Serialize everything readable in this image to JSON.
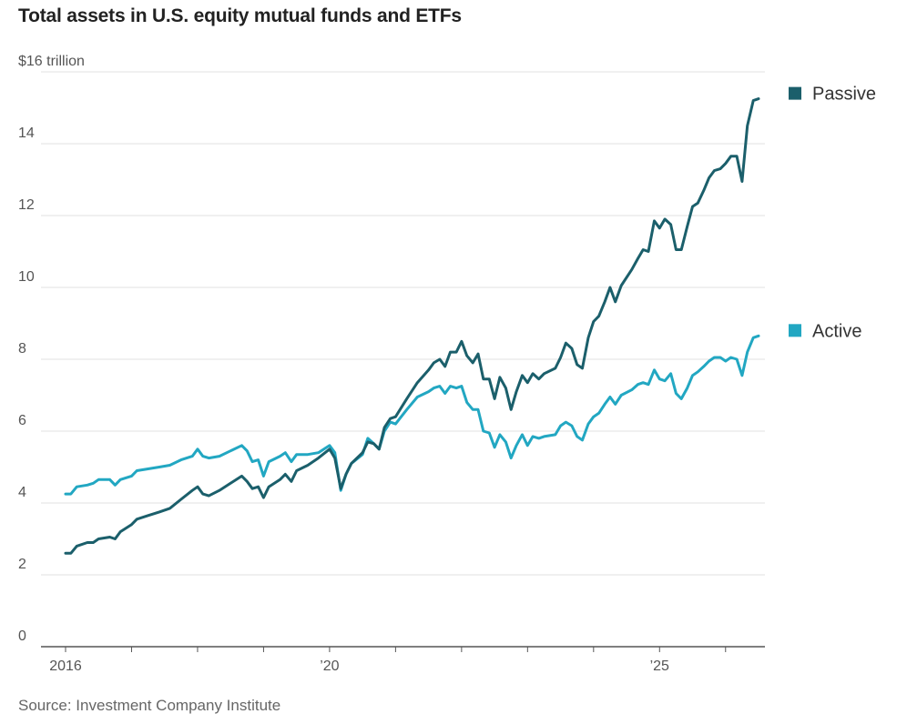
{
  "chart_data": {
    "type": "line",
    "title": "Total assets in U.S. equity mutual funds and ETFs",
    "source": "Source: Investment Company Institute",
    "y_unit_label": "$16 trillion",
    "ylim": [
      0,
      16
    ],
    "y_ticks": [
      0,
      2,
      4,
      6,
      8,
      10,
      12,
      14,
      16
    ],
    "y_tick_labels": [
      "0",
      "2",
      "4",
      "6",
      "8",
      "10",
      "12",
      "14",
      "$16 trillion"
    ],
    "xlim": [
      2016.0,
      2026.5
    ],
    "x_tick_labels": [
      {
        "x": 2016,
        "label": "2016"
      },
      {
        "x": 2020,
        "label": "’20"
      },
      {
        "x": 2025,
        "label": "’25"
      }
    ],
    "x_minor_ticks": [
      2016,
      2017,
      2018,
      2019,
      2020,
      2021,
      2022,
      2023,
      2024,
      2025,
      2026
    ],
    "grid": true,
    "legend_position": "right, beside line ends",
    "series": [
      {
        "name": "Passive",
        "color": "#1b5f6b",
        "points": [
          [
            2016.0,
            2.6
          ],
          [
            2016.08,
            2.6
          ],
          [
            2016.17,
            2.8
          ],
          [
            2016.33,
            2.9
          ],
          [
            2016.42,
            2.9
          ],
          [
            2016.5,
            3.0
          ],
          [
            2016.67,
            3.05
          ],
          [
            2016.75,
            3.0
          ],
          [
            2016.83,
            3.2
          ],
          [
            2017.0,
            3.4
          ],
          [
            2017.08,
            3.55
          ],
          [
            2017.25,
            3.65
          ],
          [
            2017.42,
            3.75
          ],
          [
            2017.58,
            3.85
          ],
          [
            2017.75,
            4.1
          ],
          [
            2017.92,
            4.35
          ],
          [
            2018.0,
            4.45
          ],
          [
            2018.08,
            4.25
          ],
          [
            2018.17,
            4.2
          ],
          [
            2018.33,
            4.35
          ],
          [
            2018.5,
            4.55
          ],
          [
            2018.67,
            4.75
          ],
          [
            2018.75,
            4.6
          ],
          [
            2018.83,
            4.4
          ],
          [
            2018.92,
            4.45
          ],
          [
            2019.0,
            4.15
          ],
          [
            2019.08,
            4.45
          ],
          [
            2019.25,
            4.65
          ],
          [
            2019.33,
            4.8
          ],
          [
            2019.42,
            4.6
          ],
          [
            2019.5,
            4.9
          ],
          [
            2019.67,
            5.05
          ],
          [
            2019.83,
            5.25
          ],
          [
            2020.0,
            5.5
          ],
          [
            2020.08,
            5.25
          ],
          [
            2020.17,
            4.4
          ],
          [
            2020.25,
            4.8
          ],
          [
            2020.33,
            5.1
          ],
          [
            2020.5,
            5.4
          ],
          [
            2020.58,
            5.7
          ],
          [
            2020.67,
            5.65
          ],
          [
            2020.75,
            5.5
          ],
          [
            2020.83,
            6.1
          ],
          [
            2020.92,
            6.35
          ],
          [
            2021.0,
            6.4
          ],
          [
            2021.17,
            6.9
          ],
          [
            2021.33,
            7.35
          ],
          [
            2021.5,
            7.7
          ],
          [
            2021.58,
            7.9
          ],
          [
            2021.67,
            8.0
          ],
          [
            2021.75,
            7.8
          ],
          [
            2021.83,
            8.2
          ],
          [
            2021.92,
            8.2
          ],
          [
            2022.0,
            8.5
          ],
          [
            2022.08,
            8.1
          ],
          [
            2022.17,
            7.9
          ],
          [
            2022.25,
            8.15
          ],
          [
            2022.33,
            7.45
          ],
          [
            2022.42,
            7.45
          ],
          [
            2022.5,
            6.9
          ],
          [
            2022.58,
            7.5
          ],
          [
            2022.67,
            7.2
          ],
          [
            2022.75,
            6.6
          ],
          [
            2022.83,
            7.1
          ],
          [
            2022.92,
            7.55
          ],
          [
            2023.0,
            7.35
          ],
          [
            2023.08,
            7.6
          ],
          [
            2023.17,
            7.45
          ],
          [
            2023.25,
            7.6
          ],
          [
            2023.42,
            7.75
          ],
          [
            2023.5,
            8.05
          ],
          [
            2023.58,
            8.45
          ],
          [
            2023.67,
            8.3
          ],
          [
            2023.75,
            7.85
          ],
          [
            2023.83,
            7.75
          ],
          [
            2023.92,
            8.6
          ],
          [
            2024.0,
            9.05
          ],
          [
            2024.08,
            9.2
          ],
          [
            2024.17,
            9.6
          ],
          [
            2024.25,
            10.0
          ],
          [
            2024.33,
            9.6
          ],
          [
            2024.42,
            10.05
          ],
          [
            2024.58,
            10.5
          ],
          [
            2024.67,
            10.8
          ],
          [
            2024.75,
            11.05
          ],
          [
            2024.83,
            11.0
          ],
          [
            2024.92,
            11.85
          ],
          [
            2025.0,
            11.65
          ],
          [
            2025.08,
            11.9
          ],
          [
            2025.17,
            11.75
          ],
          [
            2025.25,
            11.05
          ],
          [
            2025.33,
            11.05
          ],
          [
            2025.42,
            11.7
          ],
          [
            2025.5,
            12.25
          ],
          [
            2025.58,
            12.35
          ],
          [
            2025.67,
            12.7
          ],
          [
            2025.75,
            13.05
          ],
          [
            2025.83,
            13.25
          ],
          [
            2025.92,
            13.3
          ],
          [
            2026.0,
            13.45
          ],
          [
            2026.08,
            13.65
          ],
          [
            2026.17,
            13.65
          ],
          [
            2026.25,
            12.95
          ],
          [
            2026.33,
            14.5
          ],
          [
            2026.42,
            15.2
          ],
          [
            2026.5,
            15.25
          ]
        ]
      },
      {
        "name": "Active",
        "color": "#22a7c2",
        "points": [
          [
            2016.0,
            4.25
          ],
          [
            2016.08,
            4.25
          ],
          [
            2016.17,
            4.45
          ],
          [
            2016.33,
            4.5
          ],
          [
            2016.42,
            4.55
          ],
          [
            2016.5,
            4.65
          ],
          [
            2016.67,
            4.65
          ],
          [
            2016.75,
            4.5
          ],
          [
            2016.83,
            4.65
          ],
          [
            2017.0,
            4.75
          ],
          [
            2017.08,
            4.9
          ],
          [
            2017.25,
            4.95
          ],
          [
            2017.42,
            5.0
          ],
          [
            2017.58,
            5.05
          ],
          [
            2017.75,
            5.2
          ],
          [
            2017.92,
            5.3
          ],
          [
            2018.0,
            5.5
          ],
          [
            2018.08,
            5.3
          ],
          [
            2018.17,
            5.25
          ],
          [
            2018.33,
            5.3
          ],
          [
            2018.5,
            5.45
          ],
          [
            2018.67,
            5.6
          ],
          [
            2018.75,
            5.45
          ],
          [
            2018.83,
            5.15
          ],
          [
            2018.92,
            5.2
          ],
          [
            2019.0,
            4.75
          ],
          [
            2019.08,
            5.15
          ],
          [
            2019.25,
            5.3
          ],
          [
            2019.33,
            5.4
          ],
          [
            2019.42,
            5.15
          ],
          [
            2019.5,
            5.35
          ],
          [
            2019.67,
            5.35
          ],
          [
            2019.83,
            5.4
          ],
          [
            2020.0,
            5.6
          ],
          [
            2020.08,
            5.4
          ],
          [
            2020.17,
            4.35
          ],
          [
            2020.25,
            4.8
          ],
          [
            2020.33,
            5.1
          ],
          [
            2020.5,
            5.35
          ],
          [
            2020.58,
            5.8
          ],
          [
            2020.67,
            5.65
          ],
          [
            2020.75,
            5.5
          ],
          [
            2020.83,
            6.0
          ],
          [
            2020.92,
            6.25
          ],
          [
            2021.0,
            6.2
          ],
          [
            2021.17,
            6.6
          ],
          [
            2021.33,
            6.95
          ],
          [
            2021.5,
            7.1
          ],
          [
            2021.58,
            7.2
          ],
          [
            2021.67,
            7.25
          ],
          [
            2021.75,
            7.05
          ],
          [
            2021.83,
            7.25
          ],
          [
            2021.92,
            7.2
          ],
          [
            2022.0,
            7.25
          ],
          [
            2022.08,
            6.8
          ],
          [
            2022.17,
            6.6
          ],
          [
            2022.25,
            6.6
          ],
          [
            2022.33,
            6.0
          ],
          [
            2022.42,
            5.95
          ],
          [
            2022.5,
            5.55
          ],
          [
            2022.58,
            5.9
          ],
          [
            2022.67,
            5.7
          ],
          [
            2022.75,
            5.25
          ],
          [
            2022.83,
            5.6
          ],
          [
            2022.92,
            5.9
          ],
          [
            2023.0,
            5.6
          ],
          [
            2023.08,
            5.85
          ],
          [
            2023.17,
            5.8
          ],
          [
            2023.25,
            5.85
          ],
          [
            2023.42,
            5.9
          ],
          [
            2023.5,
            6.15
          ],
          [
            2023.58,
            6.25
          ],
          [
            2023.67,
            6.15
          ],
          [
            2023.75,
            5.85
          ],
          [
            2023.83,
            5.75
          ],
          [
            2023.92,
            6.2
          ],
          [
            2024.0,
            6.4
          ],
          [
            2024.08,
            6.5
          ],
          [
            2024.17,
            6.75
          ],
          [
            2024.25,
            6.95
          ],
          [
            2024.33,
            6.75
          ],
          [
            2024.42,
            7.0
          ],
          [
            2024.58,
            7.15
          ],
          [
            2024.67,
            7.3
          ],
          [
            2024.75,
            7.35
          ],
          [
            2024.83,
            7.3
          ],
          [
            2024.92,
            7.7
          ],
          [
            2025.0,
            7.45
          ],
          [
            2025.08,
            7.4
          ],
          [
            2025.17,
            7.6
          ],
          [
            2025.25,
            7.05
          ],
          [
            2025.33,
            6.9
          ],
          [
            2025.42,
            7.2
          ],
          [
            2025.5,
            7.55
          ],
          [
            2025.58,
            7.65
          ],
          [
            2025.67,
            7.8
          ],
          [
            2025.75,
            7.95
          ],
          [
            2025.83,
            8.05
          ],
          [
            2025.92,
            8.05
          ],
          [
            2026.0,
            7.95
          ],
          [
            2026.08,
            8.05
          ],
          [
            2026.17,
            8.0
          ],
          [
            2026.25,
            7.55
          ],
          [
            2026.33,
            8.2
          ],
          [
            2026.42,
            8.6
          ],
          [
            2026.5,
            8.65
          ]
        ]
      }
    ]
  }
}
